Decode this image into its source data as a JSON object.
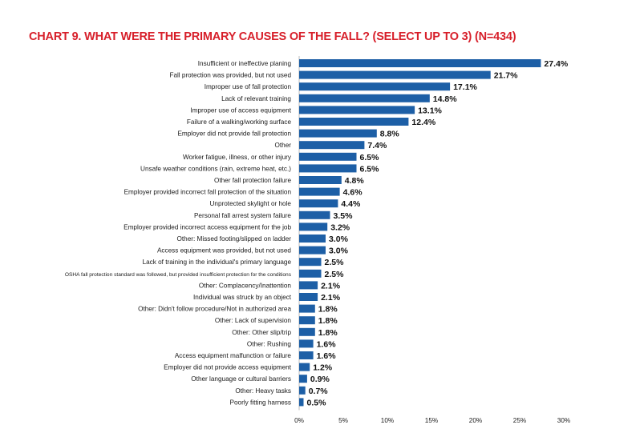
{
  "chart_data": {
    "type": "bar",
    "orientation": "horizontal",
    "title": "CHART 9. WHAT WERE THE PRIMARY CAUSES OF THE FALL? (SELECT UP TO 3) (N=434)",
    "xlabel": "",
    "ylabel": "",
    "xlim": [
      0,
      30
    ],
    "x_ticks": [
      "0%",
      "5%",
      "10%",
      "15%",
      "20%",
      "25%",
      "30%"
    ],
    "x_tick_values": [
      0,
      5,
      10,
      15,
      20,
      25,
      30
    ],
    "grid": false,
    "legend": "none",
    "bar_color": "#1d5fa6",
    "title_color": "#d71f2a",
    "categories": [
      "Insufficient or ineffective planing",
      "Fall protection was provided, but not used",
      "Improper use of fall protection",
      "Lack of relevant training",
      "Improper use of access equipment",
      "Failure of a walking/working surface",
      "Employer did not provide fall protection",
      "Other",
      "Worker fatigue, illness, or other injury",
      "Unsafe weather conditions (rain, extreme heat, etc.)",
      "Other fall protection failure",
      "Employer provided incorrect fall protection of the situation",
      "Unprotected skylight or hole",
      "Personal fall arrest system failure",
      "Employer provided incorrect access equipment for the job",
      "Other: Missed footing/slipped on ladder",
      "Access equipment was provided, but not used",
      "Lack of training in the individual's primary language",
      "OSHA fall protection standard was followed, but provided insufficient protection for the conditions",
      "Other: Complacency/Inattention",
      "Individual was struck by an object",
      "Other: Didn't follow procedure/Not in authorized area",
      "Other: Lack of supervision",
      "Other: Other slip/trip",
      "Other: Rushing",
      "Access equipment malfunction or failure",
      "Employer did not provide access equipment",
      "Other language or cultural barriers",
      "Other: Heavy tasks",
      "Poorly fitting harness"
    ],
    "values": [
      27.4,
      21.7,
      17.1,
      14.8,
      13.1,
      12.4,
      8.8,
      7.4,
      6.5,
      6.5,
      4.8,
      4.6,
      4.4,
      3.5,
      3.2,
      3.0,
      3.0,
      2.5,
      2.5,
      2.1,
      2.1,
      1.8,
      1.8,
      1.8,
      1.6,
      1.6,
      1.2,
      0.9,
      0.7,
      0.5
    ],
    "value_labels": [
      "27.4%",
      "21.7%",
      "17.1%",
      "14.8%",
      "13.1%",
      "12.4%",
      "8.8%",
      "7.4%",
      "6.5%",
      "6.5%",
      "4.8%",
      "4.6%",
      "4.4%",
      "3.5%",
      "3.2%",
      "3.0%",
      "3.0%",
      "2.5%",
      "2.5%",
      "2.1%",
      "2.1%",
      "1.8%",
      "1.8%",
      "1.8%",
      "1.6%",
      "1.6%",
      "1.2%",
      "0.9%",
      "0.7%",
      "0.5%"
    ]
  }
}
